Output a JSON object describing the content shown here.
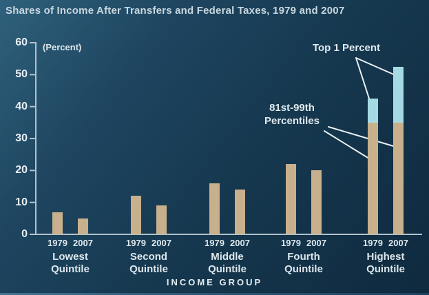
{
  "title": "Shares of Income After Transfers and Federal Taxes, 1979 and 2007",
  "annotations": {
    "top_1_percent": "Top 1 Percent",
    "percentiles_line1": "81st-99th",
    "percentiles_line2": "Percentiles"
  },
  "colors": {
    "bar_tan": "#c9b08c",
    "bar_light_blue": "#a5dae4",
    "axis": "#b3c2cb",
    "callout_line": "#e9f1f5",
    "text": "#dfe9ee",
    "title_text": "#c9d7df"
  },
  "chart_data": {
    "type": "bar",
    "title": "Shares of Income After Transfers and Federal Taxes, 1979 and 2007",
    "categories": [
      "Lowest Quintile",
      "Second Quintile",
      "Middle Quintile",
      "Fourth Quintile",
      "Highest Quintile"
    ],
    "series": [
      {
        "name": "1979",
        "values": [
          7,
          12,
          16,
          22,
          42.5
        ]
      },
      {
        "name": "2007",
        "values": [
          5,
          9,
          14,
          20,
          52.5
        ]
      }
    ],
    "highest_quintile_breakdown": {
      "1979": {
        "81st-99th Percentiles": 35,
        "Top 1 Percent": 7.5
      },
      "2007": {
        "81st-99th Percentiles": 35,
        "Top 1 Percent": 17.5
      }
    },
    "ylabel": "(Percent)",
    "xlabel": "INCOME GROUP",
    "ylim": [
      0,
      60
    ],
    "yticks": [
      0,
      10,
      20,
      30,
      40,
      50,
      60
    ],
    "grid": false,
    "legend_position": "inline-annotations"
  }
}
